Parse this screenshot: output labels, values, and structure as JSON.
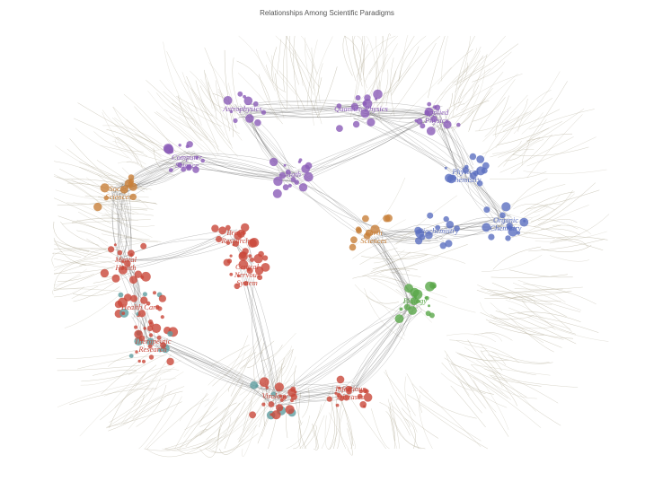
{
  "title": "Relationships Among Scientific Paradigms",
  "colors": {
    "purple": "#8b5cb8",
    "blue": "#5b6fc0",
    "orange": "#c8803a",
    "red": "#c9473a",
    "green": "#5aa84a",
    "teal": "#5f9ea0",
    "edge": "#555555",
    "strand": "#b8b29e"
  },
  "labels": [
    {
      "id": "astrophysics",
      "lines": [
        "Astrophysics"
      ],
      "color": "purple"
    },
    {
      "id": "quantum-physics",
      "lines": [
        "Quantum Physics"
      ],
      "color": "purple"
    },
    {
      "id": "applied-physics",
      "lines": [
        "Applied",
        "Physics"
      ],
      "color": "purple"
    },
    {
      "id": "computer-science",
      "lines": [
        "Computer",
        "Science"
      ],
      "color": "purple"
    },
    {
      "id": "math",
      "lines": [
        "Math"
      ],
      "color": "purple"
    },
    {
      "id": "physical-chemistry",
      "lines": [
        "Physical",
        "Chemistry"
      ],
      "color": "blue"
    },
    {
      "id": "organic-chemistry",
      "lines": [
        "Organic",
        "Chemistry"
      ],
      "color": "blue"
    },
    {
      "id": "social-sciences",
      "lines": [
        "Social",
        "Sciences"
      ],
      "color": "orange"
    },
    {
      "id": "brain-research",
      "lines": [
        "Brain",
        "Research"
      ],
      "color": "red"
    },
    {
      "id": "mental-health",
      "lines": [
        "Mental",
        "Health"
      ],
      "color": "red"
    },
    {
      "id": "central-nervous-system",
      "lines": [
        "Central",
        "Nervous",
        "System"
      ],
      "color": "red"
    },
    {
      "id": "health-care",
      "lines": [
        "Health Care"
      ],
      "color": "red"
    },
    {
      "id": "therapeutic-research",
      "lines": [
        "Therapeutic",
        "Research"
      ],
      "color": "red"
    },
    {
      "id": "virology",
      "lines": [
        "Virology"
      ],
      "color": "red"
    },
    {
      "id": "infectious-diseases",
      "lines": [
        "Infectious",
        "Diseases"
      ],
      "color": "red"
    },
    {
      "id": "biology",
      "lines": [
        "Biology"
      ],
      "color": "green"
    },
    {
      "id": "earth-sciences",
      "lines": [
        "Earth",
        "Sciences"
      ],
      "color": "orange"
    },
    {
      "id": "biochemistry",
      "lines": [
        "Biochemistry"
      ],
      "color": "blue"
    }
  ]
}
